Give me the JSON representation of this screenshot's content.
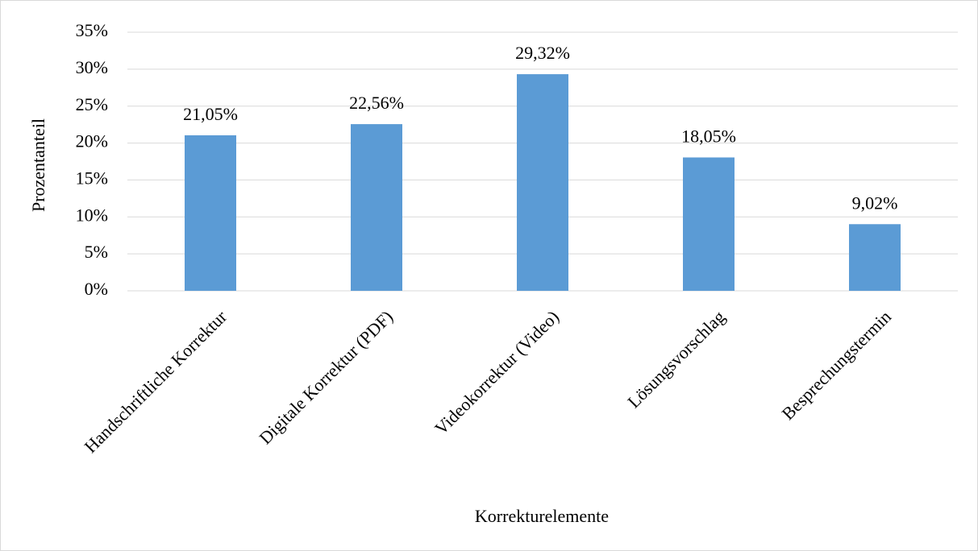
{
  "chart_data": {
    "type": "bar",
    "categories": [
      "Handschriftliche Korrektur",
      "Digitale Korrektur (PDF)",
      "Videokorrektur (Video)",
      "Lösungsvorschlag",
      "Besprechungstermin"
    ],
    "values": [
      21.05,
      22.56,
      29.32,
      18.05,
      9.02
    ],
    "value_labels": [
      "21,05%",
      "22,56%",
      "29,32%",
      "18,05%",
      "9,02%"
    ],
    "color": "#5b9bd5",
    "xlabel": "Korrekturelemente",
    "ylabel": "Prozentanteil",
    "ylim": [
      0,
      35
    ],
    "yticks": [
      {
        "value": 0,
        "label": "0%"
      },
      {
        "value": 5,
        "label": "5%"
      },
      {
        "value": 10,
        "label": "10%"
      },
      {
        "value": 15,
        "label": "15%"
      },
      {
        "value": 20,
        "label": "20%"
      },
      {
        "value": 25,
        "label": "25%"
      },
      {
        "value": 30,
        "label": "30%"
      },
      {
        "value": 35,
        "label": "35%"
      }
    ],
    "grid": true
  }
}
